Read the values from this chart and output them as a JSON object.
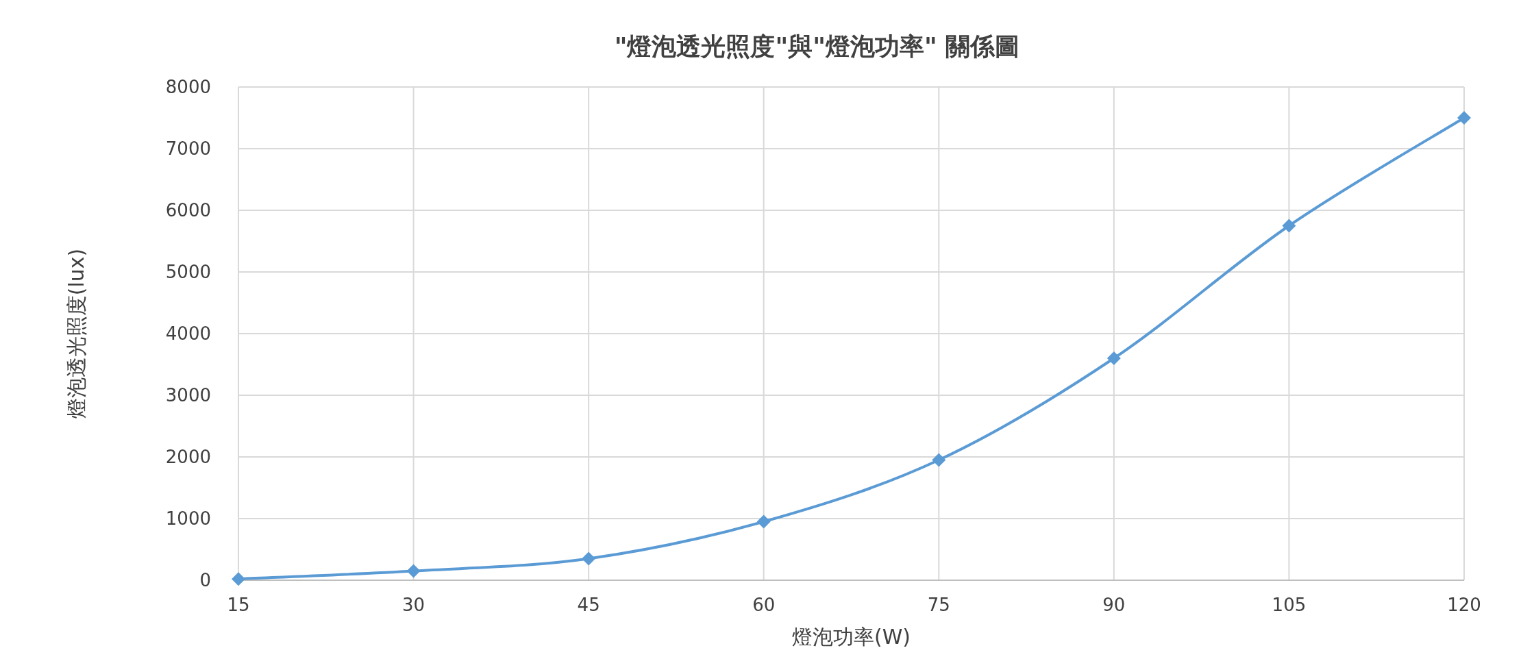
{
  "chart_data": {
    "type": "line",
    "title": "\"燈泡透光照度\"與\"燈泡功率\" 關係圖",
    "xlabel": "燈泡功率(W)",
    "ylabel": "燈泡透光照度(lux)",
    "x": [
      15,
      30,
      45,
      60,
      75,
      90,
      105,
      120
    ],
    "series": [
      {
        "color": "#5b9bd5",
        "values": [
          20,
          150,
          350,
          950,
          1950,
          3600,
          5750,
          7500
        ]
      }
    ],
    "xlim": [
      15,
      120
    ],
    "xticks": [
      15,
      30,
      45,
      60,
      75,
      90,
      105,
      120
    ],
    "ylim": [
      0,
      8000
    ],
    "yticks": [
      0,
      1000,
      2000,
      3000,
      4000,
      5000,
      6000,
      7000,
      8000
    ],
    "grid": true,
    "marker": "diamond",
    "line_style": "solid"
  }
}
